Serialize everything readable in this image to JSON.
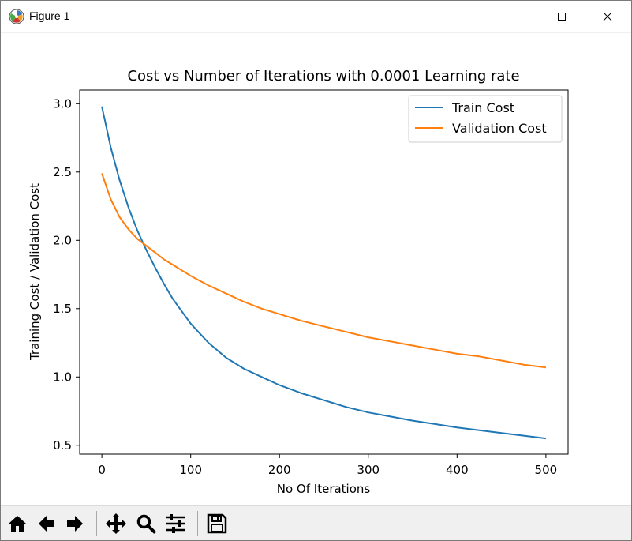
{
  "window": {
    "title": "Figure 1",
    "controls": [
      "minimize-icon",
      "maximize-icon",
      "close-icon"
    ]
  },
  "toolbar": {
    "buttons": [
      "home-icon",
      "back-icon",
      "forward-icon",
      "pan-icon",
      "zoom-icon",
      "configure-subplots-icon",
      "save-icon"
    ]
  },
  "chart_data": {
    "type": "line",
    "title": "Cost vs Number of Iterations with 0.0001 Learning rate",
    "xlabel": "No Of Iterations",
    "ylabel": "Training Cost / Validation Cost",
    "xlim": [
      -25,
      525
    ],
    "ylim": [
      0.435,
      3.1
    ],
    "xticks": [
      0,
      100,
      200,
      300,
      400,
      500
    ],
    "yticks": [
      0.5,
      1.0,
      1.5,
      2.0,
      2.5,
      3.0
    ],
    "xtick_labels": [
      "0",
      "100",
      "200",
      "300",
      "400",
      "500"
    ],
    "ytick_labels": [
      "0.5",
      "1.0",
      "1.5",
      "2.0",
      "2.5",
      "3.0"
    ],
    "grid": false,
    "legend_position": "top-right",
    "x": [
      0,
      10,
      20,
      30,
      40,
      50,
      60,
      70,
      80,
      100,
      120,
      140,
      160,
      180,
      200,
      225,
      250,
      275,
      300,
      325,
      350,
      375,
      400,
      425,
      450,
      475,
      500
    ],
    "series": [
      {
        "name": "Train Cost",
        "color": "#1f77b4",
        "values": [
          2.98,
          2.68,
          2.44,
          2.24,
          2.07,
          1.93,
          1.8,
          1.68,
          1.57,
          1.39,
          1.25,
          1.14,
          1.06,
          1.0,
          0.94,
          0.88,
          0.83,
          0.78,
          0.74,
          0.71,
          0.68,
          0.655,
          0.63,
          0.61,
          0.59,
          0.57,
          0.55
        ]
      },
      {
        "name": "Validation Cost",
        "color": "#ff7f0e",
        "values": [
          2.49,
          2.3,
          2.17,
          2.08,
          2.01,
          1.96,
          1.91,
          1.86,
          1.82,
          1.74,
          1.67,
          1.61,
          1.55,
          1.5,
          1.46,
          1.41,
          1.37,
          1.33,
          1.29,
          1.26,
          1.23,
          1.2,
          1.17,
          1.15,
          1.12,
          1.09,
          1.07
        ]
      }
    ]
  }
}
